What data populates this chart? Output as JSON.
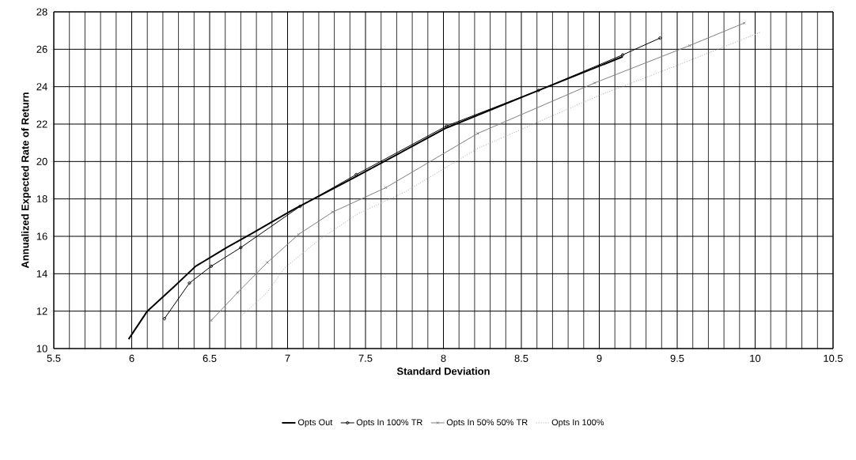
{
  "chart_data": {
    "type": "line",
    "xlabel": "Standard Deviation",
    "ylabel": "Annualized Expected Rate of Return",
    "xlim": [
      5.5,
      10.5
    ],
    "xticks": [
      5.5,
      6,
      6.5,
      7,
      7.5,
      8,
      8.5,
      9,
      9.5,
      10,
      10.5
    ],
    "ylim": [
      10,
      28
    ],
    "yticks": [
      10,
      12,
      14,
      16,
      18,
      20,
      22,
      24,
      26,
      28
    ],
    "grid": true,
    "legend": "bottom",
    "series": [
      {
        "name": "Opts Out",
        "color": "#000000",
        "marker": "none",
        "line_style": "solid",
        "x": [
          5.98,
          6.1,
          6.27,
          6.41,
          6.61,
          6.78,
          7.03,
          7.44,
          8.02,
          8.61,
          9.15
        ],
        "values": [
          10.5,
          12.0,
          13.3,
          14.4,
          15.4,
          16.2,
          17.4,
          19.2,
          21.8,
          23.8,
          25.6
        ]
      },
      {
        "name": "Opts In 100% TR",
        "color": "#000000",
        "marker": "circle",
        "line_style": "solid",
        "x": [
          6.21,
          6.37,
          6.51,
          6.7,
          7.08,
          7.44,
          8.02,
          8.61,
          9.15,
          9.39
        ],
        "values": [
          11.6,
          13.5,
          14.4,
          15.4,
          17.6,
          19.3,
          21.9,
          23.8,
          25.7,
          26.6
        ]
      },
      {
        "name": "Opts In 50% 50% TR",
        "color": "#808080",
        "marker": "cross",
        "line_style": "solid",
        "x": [
          6.51,
          6.68,
          6.87,
          7.07,
          7.29,
          7.63,
          8.22,
          8.97,
          9.58,
          9.93
        ],
        "values": [
          11.5,
          13.0,
          14.6,
          16.1,
          17.3,
          18.6,
          21.5,
          24.2,
          26.2,
          27.4
        ]
      },
      {
        "name": "Opts In 100%",
        "color": "#a0a0a0",
        "marker": "none",
        "line_style": "dotted",
        "x": [
          6.71,
          6.87,
          6.98,
          7.2,
          7.45,
          7.76,
          8.22,
          8.99,
          9.58,
          10.03
        ],
        "values": [
          11.8,
          13.0,
          14.3,
          15.8,
          17.2,
          18.4,
          20.7,
          23.5,
          25.4,
          26.9
        ]
      }
    ]
  }
}
